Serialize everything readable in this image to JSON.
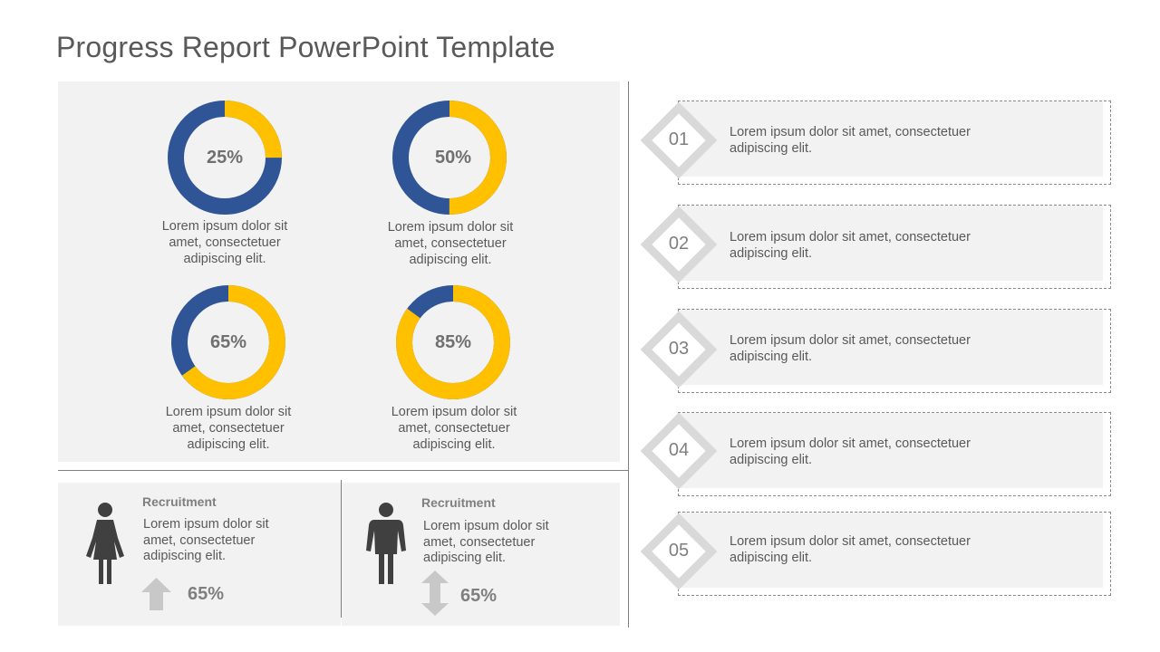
{
  "title": "Progress Report PowerPoint Template",
  "colors": {
    "primary": "#2f5597",
    "accent": "#ffc000",
    "panel": "#f2f2f2",
    "text": "#595959"
  },
  "donuts": [
    {
      "label": "25%",
      "value": 0.25,
      "caption": [
        "Lorem ipsum dolor sit",
        "amet, consectetuer",
        "adipiscing elit."
      ]
    },
    {
      "label": "50%",
      "value": 0.5,
      "caption": [
        "Lorem ipsum dolor sit",
        "amet, consectetuer",
        "adipiscing elit."
      ]
    },
    {
      "label": "65%",
      "value": 0.65,
      "caption": [
        "Lorem ipsum dolor sit",
        "amet, consectetuer",
        "adipiscing elit."
      ]
    },
    {
      "label": "85%",
      "value": 0.85,
      "caption": [
        "Lorem ipsum dolor sit",
        "amet, consectetuer",
        "adipiscing elit."
      ]
    }
  ],
  "recruitment": [
    {
      "icon": "female-person-icon",
      "heading": "Recruitment",
      "text": [
        "Lorem ipsum dolor sit",
        "amet, consectetuer",
        "adipiscing elit."
      ],
      "arrow": "up-arrow-icon",
      "percent": "65%"
    },
    {
      "icon": "male-person-icon",
      "heading": "Recruitment",
      "text": [
        "Lorem ipsum dolor sit",
        "amet, consectetuer",
        "adipiscing elit."
      ],
      "arrow": "up-down-arrow-icon",
      "percent": "65%"
    }
  ],
  "steps": [
    {
      "number": "01",
      "text": [
        "Lorem ipsum dolor sit amet, consectetuer",
        "adipiscing elit."
      ]
    },
    {
      "number": "02",
      "text": [
        "Lorem ipsum dolor sit amet, consectetuer",
        "adipiscing elit."
      ]
    },
    {
      "number": "03",
      "text": [
        "Lorem ipsum dolor sit amet, consectetuer",
        "adipiscing elit."
      ]
    },
    {
      "number": "04",
      "text": [
        "Lorem ipsum dolor sit amet, consectetuer",
        "adipiscing elit."
      ]
    },
    {
      "number": "05",
      "text": [
        "Lorem ipsum dolor sit amet, consectetuer",
        "adipiscing elit."
      ]
    }
  ]
}
